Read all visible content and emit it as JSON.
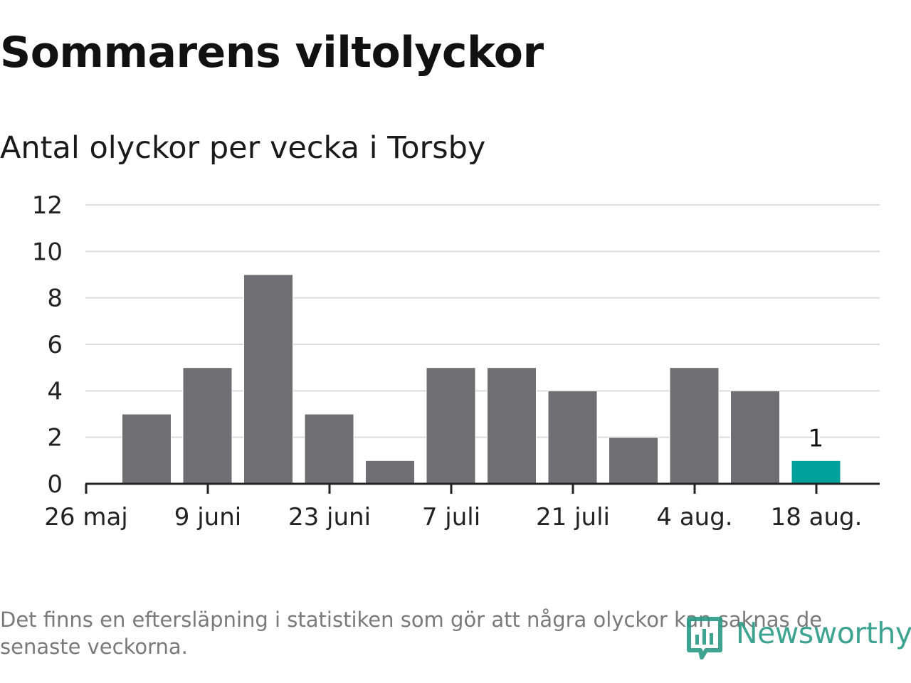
{
  "header": {
    "title": "Sommarens viltolyckor",
    "subtitle": "Antal olyckor per vecka i Torsby"
  },
  "chart_data": {
    "type": "bar",
    "title": "Sommarens viltolyckor",
    "subtitle": "Antal olyckor per vecka i Torsby",
    "xlabel": "",
    "ylabel": "",
    "ylim": [
      0,
      12
    ],
    "yticks": [
      0,
      2,
      4,
      6,
      8,
      10,
      12
    ],
    "grid": true,
    "x_tick_labels": [
      "26 maj",
      "9 juni",
      "23 juni",
      "7 juli",
      "21 juli",
      "4 aug.",
      "18 aug."
    ],
    "values": [
      3,
      5,
      9,
      3,
      1,
      5,
      5,
      4,
      2,
      5,
      4,
      1
    ],
    "highlight_index": 11,
    "data_labels": [
      {
        "index": 11,
        "text": "1"
      }
    ],
    "colors": {
      "bar": "#6f6e73",
      "highlight": "#00a19a",
      "grid": "#dcdcdc",
      "axis": "#222222"
    }
  },
  "footer": {
    "note": "Det finns en eftersläpning i statistiken som gör att några olyckor kan saknas de senaste veckorna.",
    "brand": "Newsworthy",
    "brand_icon": "bar-chart-badge-icon",
    "brand_color": "#2a9a86"
  }
}
